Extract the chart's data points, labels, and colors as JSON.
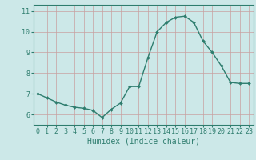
{
  "x": [
    0,
    1,
    2,
    3,
    4,
    5,
    6,
    7,
    8,
    9,
    10,
    11,
    12,
    13,
    14,
    15,
    16,
    17,
    18,
    19,
    20,
    21,
    22,
    23
  ],
  "y": [
    7.0,
    6.8,
    6.6,
    6.45,
    6.35,
    6.3,
    6.2,
    5.85,
    6.25,
    6.55,
    7.35,
    7.35,
    8.75,
    10.0,
    10.45,
    10.7,
    10.75,
    10.45,
    9.55,
    9.0,
    8.35,
    7.55,
    7.5,
    7.5
  ],
  "line_color": "#2e7d6e",
  "marker": "D",
  "marker_size": 2.0,
  "bg_color": "#cce8e8",
  "grid_color": "#b0c8c8",
  "xlabel": "Humidex (Indice chaleur)",
  "xlabel_fontsize": 7,
  "ylim": [
    5.5,
    11.3
  ],
  "xlim": [
    -0.5,
    23.5
  ],
  "yticks": [
    6,
    7,
    8,
    9,
    10,
    11
  ],
  "xticks": [
    0,
    1,
    2,
    3,
    4,
    5,
    6,
    7,
    8,
    9,
    10,
    11,
    12,
    13,
    14,
    15,
    16,
    17,
    18,
    19,
    20,
    21,
    22,
    23
  ],
  "tick_fontsize": 6,
  "linewidth": 1.0
}
